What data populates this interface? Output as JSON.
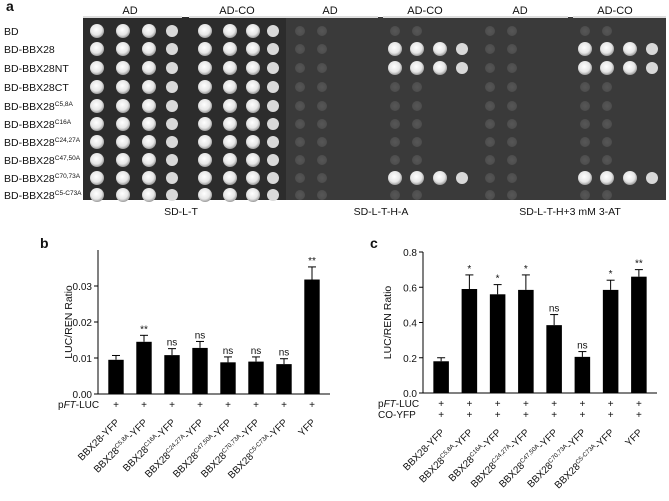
{
  "panel_a": {
    "label": "a",
    "rows": [
      "BD",
      "BD-BBX28",
      "BD-BBX28NT",
      "BD-BBX28CT",
      "BD-BBX28|C5,8A",
      "BD-BBX28|C16A",
      "BD-BBX28|C24,27A",
      "BD-BBX28|C47,50A",
      "BD-BBX28|C70,73A",
      "BD-BBX28|C5-C73A"
    ],
    "headers": [
      "AD",
      "AD-CO",
      "AD",
      "AD-CO",
      "AD",
      "AD-CO"
    ],
    "conditions": [
      "SD-L-T",
      "SD-L-T-H-A",
      "SD-L-T-H+3 mM 3-AT"
    ]
  },
  "chart_data": [
    {
      "panel": "b",
      "type": "bar",
      "categories": [
        "BBX28-YFP",
        "BBX28|C5,8A|-YFP",
        "BBX28|C16A|-YFP",
        "BBX28|C24,27A|-YFP",
        "BBX28|C47,50A|-YFP",
        "BBX28|C70,73A|-YFP",
        "BBX28|C5-C73A|-YFP",
        "YFP"
      ],
      "values": [
        0.0095,
        0.0145,
        0.0108,
        0.0128,
        0.0088,
        0.009,
        0.0083,
        0.0318
      ],
      "errors": [
        0.0012,
        0.0018,
        0.0018,
        0.0018,
        0.0015,
        0.0013,
        0.0015,
        0.0035
      ],
      "significance": [
        "",
        "**",
        "ns",
        "ns",
        "ns",
        "ns",
        "ns",
        "**"
      ],
      "ylabel": "LUC/REN Ratio",
      "ylim": [
        0,
        0.04
      ],
      "yticks": [
        "0.00",
        "0.01",
        "0.02",
        "0.03"
      ],
      "treatments": [
        {
          "label": "p|FT|-LUC",
          "marks": [
            "+",
            "+",
            "+",
            "+",
            "+",
            "+",
            "+",
            "+"
          ]
        }
      ]
    },
    {
      "panel": "c",
      "type": "bar",
      "categories": [
        "BBX28-YFP",
        "BBX28|C5,8A|-YFP",
        "BBX28|C16A|-YFP",
        "BBX28|C24,27A|-YFP",
        "BBX28|C47,50A|-YFP",
        "BBX28|C70,73A|-YFP",
        "BBX28|C5-C73A|-YFP",
        "YFP"
      ],
      "values": [
        0.18,
        0.59,
        0.56,
        0.585,
        0.385,
        0.205,
        0.585,
        0.66
      ],
      "errors": [
        0.02,
        0.08,
        0.055,
        0.085,
        0.06,
        0.03,
        0.055,
        0.04
      ],
      "significance": [
        "",
        "*",
        "*",
        "*",
        "ns",
        "ns",
        "*",
        "**"
      ],
      "ylabel": "LUC/REN Ratio",
      "ylim": [
        0,
        0.8
      ],
      "yticks": [
        "0.0",
        "0.2",
        "0.4",
        "0.6",
        "0.8"
      ],
      "treatments": [
        {
          "label": "p|FT|-LUC",
          "marks": [
            "+",
            "+",
            "+",
            "+",
            "+",
            "+",
            "+",
            "+"
          ]
        },
        {
          "label": "CO-YFP",
          "marks": [
            "+",
            "+",
            "+",
            "+",
            "+",
            "+",
            "+",
            "+"
          ]
        }
      ]
    }
  ]
}
